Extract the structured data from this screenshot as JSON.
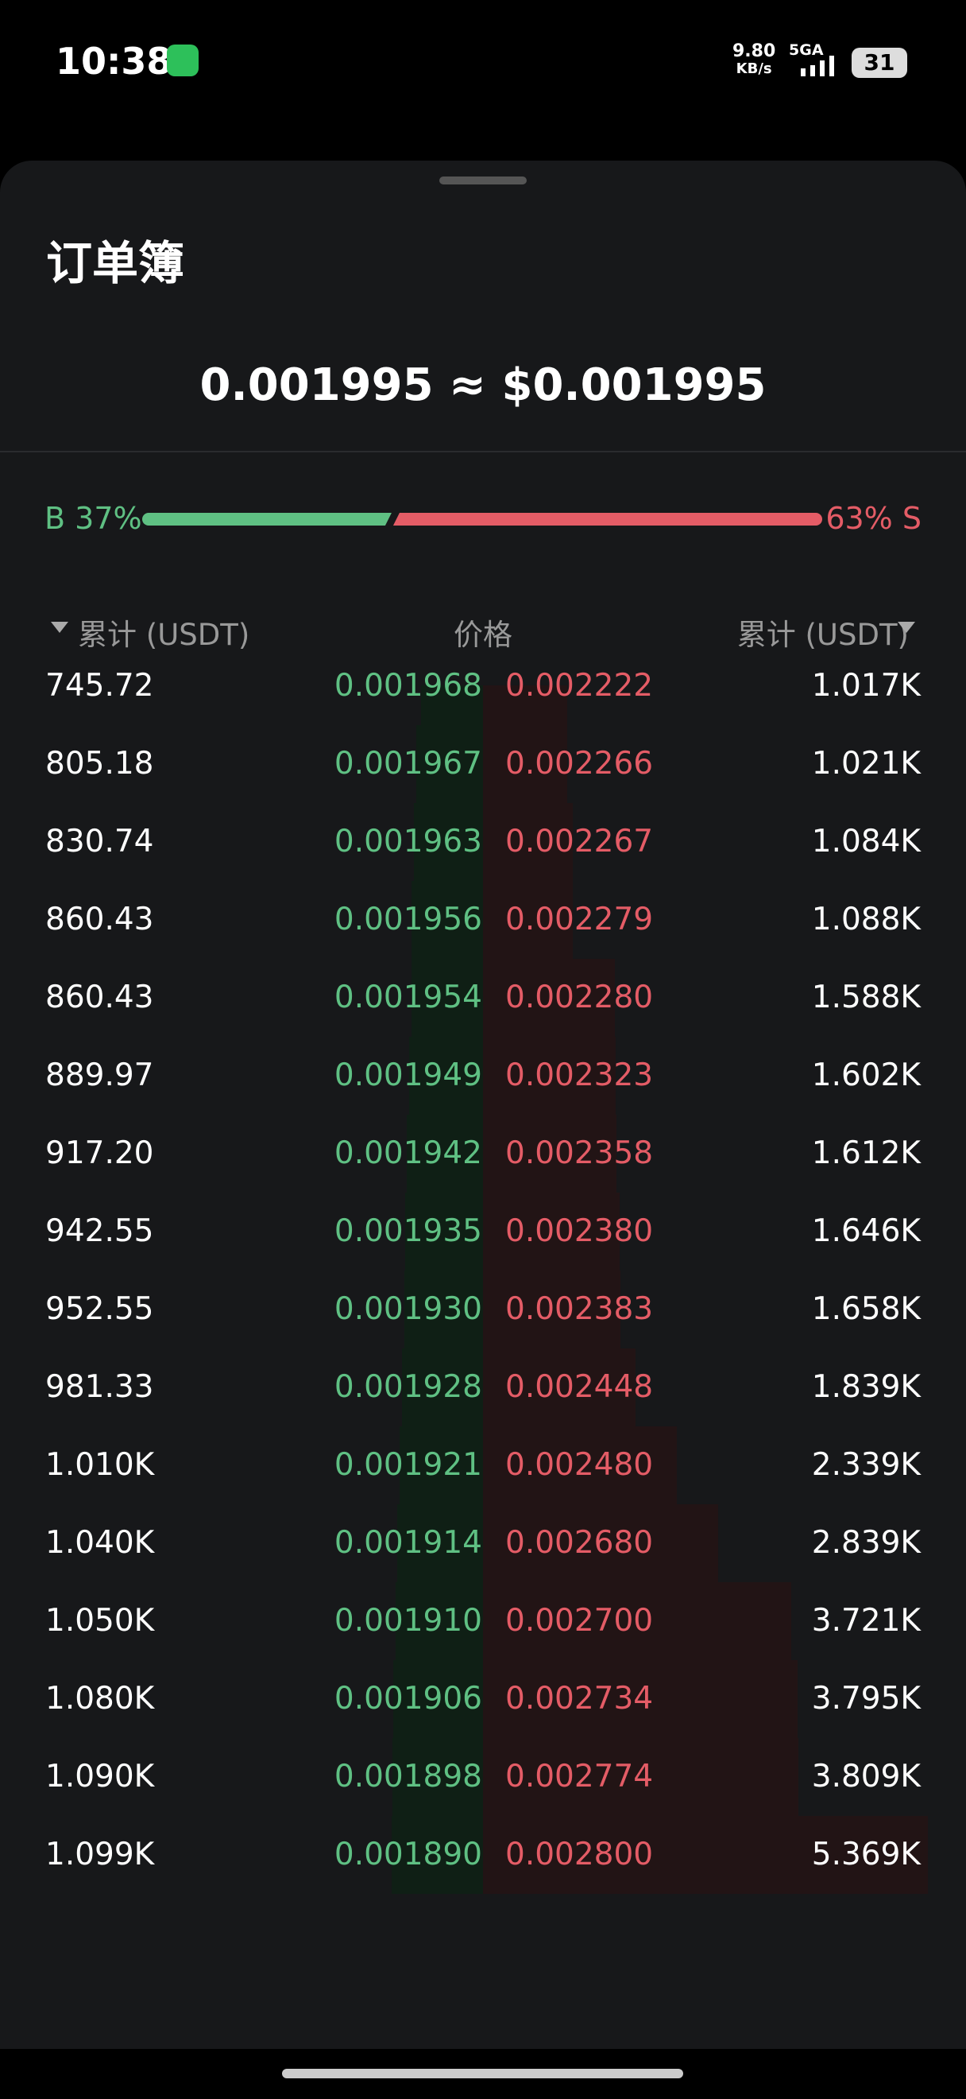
{
  "status_bar": {
    "time": "10:38",
    "speed_value": "9.80",
    "speed_unit": "KB/s",
    "network": "5GA",
    "battery": "31"
  },
  "sheet": {
    "title": "订单簿",
    "price": "0.001995 ≈ $0.001995"
  },
  "ratio": {
    "buy_label": "B",
    "buy_percent": "37%",
    "sell_percent": "63%",
    "sell_label": "S"
  },
  "table": {
    "headers": [
      "累计 (USDT)",
      "价格",
      "累计 (USDT)"
    ],
    "rows": [
      [
        "745.72",
        "0.001968",
        "0.002222",
        "1.017K"
      ],
      [
        "805.18",
        "0.001967",
        "0.002266",
        "1.021K"
      ],
      [
        "830.74",
        "0.001963",
        "0.002267",
        "1.084K"
      ],
      [
        "860.43",
        "0.001956",
        "0.002279",
        "1.088K"
      ],
      [
        "860.43",
        "0.001954",
        "0.002280",
        "1.588K"
      ],
      [
        "889.97",
        "0.001949",
        "0.002323",
        "1.602K"
      ],
      [
        "917.20",
        "0.001942",
        "0.002358",
        "1.612K"
      ],
      [
        "942.55",
        "0.001935",
        "0.002380",
        "1.646K"
      ],
      [
        "952.55",
        "0.001930",
        "0.002383",
        "1.658K"
      ],
      [
        "981.33",
        "0.001928",
        "0.002448",
        "1.839K"
      ],
      [
        "1.010K",
        "0.001921",
        "0.002480",
        "2.339K"
      ],
      [
        "1.040K",
        "0.001914",
        "0.002680",
        "2.839K"
      ],
      [
        "1.050K",
        "0.001910",
        "0.002700",
        "3.721K"
      ],
      [
        "1.080K",
        "0.001906",
        "0.002734",
        "3.795K"
      ],
      [
        "1.090K",
        "0.001898",
        "0.002774",
        "3.809K"
      ],
      [
        "1.099K",
        "0.001890",
        "0.002800",
        "5.369K"
      ]
    ]
  }
}
